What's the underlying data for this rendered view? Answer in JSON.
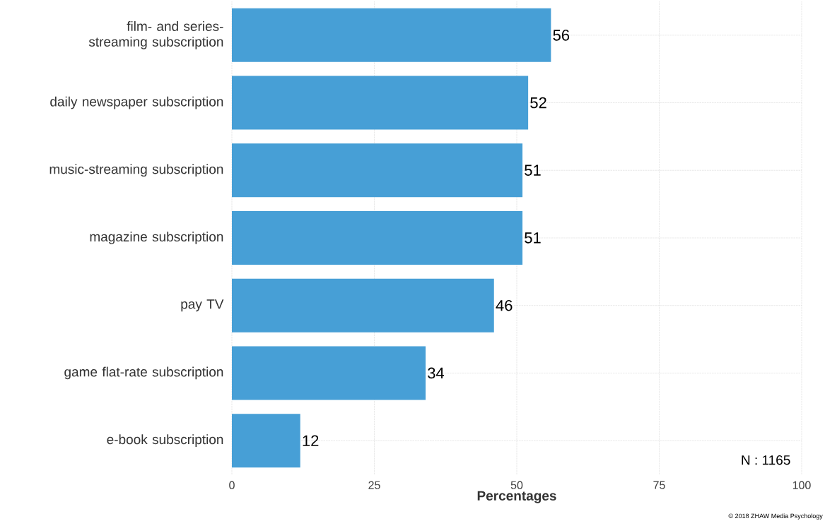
{
  "chart_data": {
    "type": "bar",
    "orientation": "horizontal",
    "xlabel": "Percentages",
    "categories": [
      "film- and series-streaming subscription",
      "daily newspaper subscription",
      "music-streaming subscription",
      "magazine subscription",
      "pay TV",
      "game flat-rate subscription",
      "e-book subscription"
    ],
    "values": [
      56,
      52,
      51,
      51,
      46,
      34,
      12
    ],
    "color": "#479fd6",
    "xlim": [
      0,
      100
    ],
    "xticks": [
      0,
      25,
      50,
      75,
      100
    ],
    "grid": true,
    "data_labels": true,
    "annotations": [
      "N : 1165",
      "© 2018 ZHAW Media Psychology"
    ]
  }
}
